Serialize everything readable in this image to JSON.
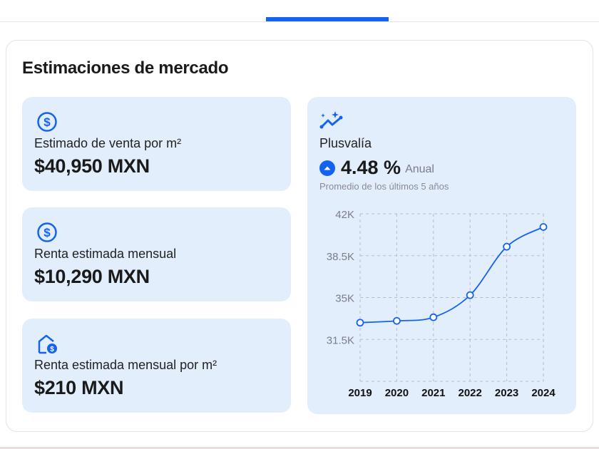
{
  "title": "Estimaciones de mercado",
  "cards": [
    {
      "icon": "dollar-circle-icon",
      "label": "Estimado de venta por m²",
      "value": "$40,950 MXN"
    },
    {
      "icon": "dollar-circle-icon",
      "label": "Renta estimada mensual",
      "value": "$10,290 MXN"
    },
    {
      "icon": "house-dollar-icon",
      "label": "Renta estimada mensual por m²",
      "value": "$210 MXN"
    }
  ],
  "plusvalia": {
    "icon": "trend-sparkle-icon",
    "label": "Plusvalía",
    "value": "4.48 %",
    "period": "Anual",
    "note": "Promedio de los últimos 5 años"
  },
  "colors": {
    "accent": "#1463f0",
    "card": "#e3eefd"
  },
  "chart_data": {
    "type": "line",
    "x": [
      "2019",
      "2020",
      "2021",
      "2022",
      "2023",
      "2024"
    ],
    "values": [
      32900,
      33050,
      33350,
      35200,
      39250,
      40900
    ],
    "yticks": [
      31500,
      35000,
      38500,
      42000
    ],
    "ytick_labels": [
      "31.5K",
      "35K",
      "38.5K",
      "42K"
    ],
    "ylim": [
      28000,
      42000
    ],
    "grid": true
  }
}
